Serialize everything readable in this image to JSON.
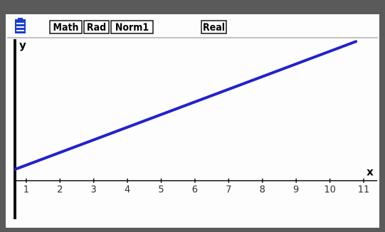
{
  "status_bar": {
    "modes": [
      "Math",
      "Rad",
      "Norm1",
      "Real"
    ]
  },
  "chart_data": {
    "type": "line",
    "x_label": "x",
    "y_label": "y",
    "xlim": [
      0.56,
      11.4
    ],
    "ylim": [
      -1.08,
      4.2
    ],
    "xticks": [
      1,
      2,
      3,
      4,
      5,
      6,
      7,
      8,
      9,
      10,
      11
    ],
    "series": [
      {
        "color": "#2222cc",
        "x": [
          0.68,
          10.77
        ],
        "values": [
          0.34,
          4.13
        ]
      }
    ]
  }
}
